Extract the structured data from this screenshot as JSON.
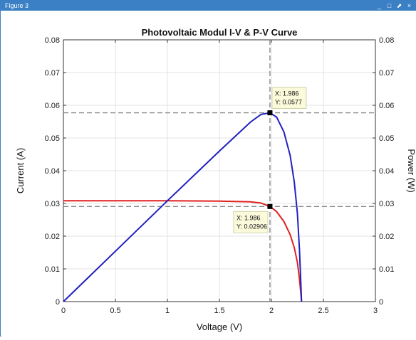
{
  "window": {
    "title": "Figure 3",
    "controls": {
      "minimize": "_",
      "maximize": "□",
      "restore": "⬈",
      "close": "×"
    }
  },
  "chart_data": {
    "type": "line",
    "title": "Photovoltaic Modul I-V & P-V Curve",
    "xlabel": "Voltage (V)",
    "ylabel_left": "Current (A)",
    "ylabel_right": "Power (W)",
    "xlim": [
      0,
      3
    ],
    "ylim_left": [
      0,
      0.08
    ],
    "ylim_right": [
      0,
      0.08
    ],
    "xticks": [
      "0",
      "0.5",
      "1",
      "1.5",
      "2",
      "2.5",
      "3"
    ],
    "yticks_left": [
      "0",
      "0.01",
      "0.02",
      "0.03",
      "0.04",
      "0.05",
      "0.06",
      "0.07",
      "0.08"
    ],
    "yticks_right": [
      "0",
      "0.01",
      "0.02",
      "0.03",
      "0.04",
      "0.05",
      "0.06",
      "0.07",
      "0.08"
    ],
    "grid": true,
    "series": [
      {
        "color": "#e02020",
        "axis": "left",
        "x": [
          0,
          0.5,
          1.0,
          1.5,
          1.8,
          1.9,
          1.986,
          2.05,
          2.12,
          2.18,
          2.22,
          2.25,
          2.27,
          2.28,
          2.29
        ],
        "y": [
          0.0308,
          0.0308,
          0.0308,
          0.0307,
          0.0305,
          0.0301,
          0.02906,
          0.0275,
          0.0245,
          0.0205,
          0.0165,
          0.012,
          0.007,
          0.0035,
          0.0
        ]
      },
      {
        "color": "#2020c0",
        "axis": "right",
        "x": [
          0,
          0.5,
          1.0,
          1.5,
          1.8,
          1.9,
          1.986,
          2.05,
          2.12,
          2.18,
          2.22,
          2.25,
          2.27,
          2.28,
          2.29
        ],
        "y": [
          0.0,
          0.0154,
          0.0308,
          0.046,
          0.0549,
          0.0572,
          0.0577,
          0.0564,
          0.0519,
          0.0447,
          0.0366,
          0.027,
          0.0159,
          0.008,
          0.0
        ]
      }
    ],
    "reference_lines": {
      "vertical_x": 1.986,
      "horizontal_y": [
        0.0577,
        0.02906
      ],
      "color": "#888888"
    },
    "datatips": [
      {
        "x": 1.986,
        "y": 0.0577,
        "x_text": "X: 1.986",
        "y_text": "Y: 0.0577",
        "placement": "above-right"
      },
      {
        "x": 1.986,
        "y": 0.02906,
        "x_text": "X: 1.986",
        "y_text": "Y: 0.02906",
        "placement": "below-left"
      }
    ]
  }
}
